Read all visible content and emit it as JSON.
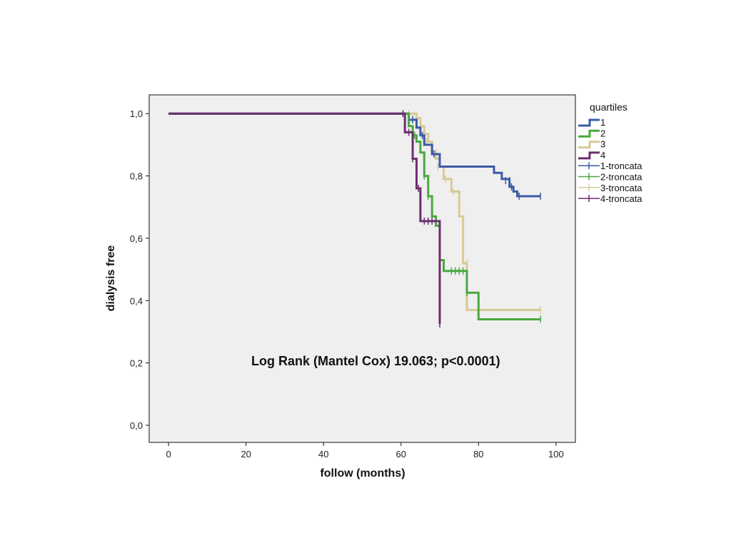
{
  "chart_data": {
    "type": "line",
    "subtype": "kaplan-meier step",
    "xlabel": "follow (months)",
    "ylabel": "dialysis free",
    "xlim": [
      -5,
      105
    ],
    "ylim": [
      -0.055,
      1.06
    ],
    "x_ticks": [
      0,
      20,
      40,
      60,
      80,
      100
    ],
    "y_ticks": [
      0,
      0.2,
      0.4,
      0.6,
      0.8,
      1.0
    ],
    "x_tick_labels": [
      "0",
      "20",
      "40",
      "60",
      "80",
      "100"
    ],
    "y_tick_labels": [
      "0,0",
      "0,2",
      "0,4",
      "0,6",
      "0,8",
      "1,0"
    ],
    "annotation": "Log Rank (Mantel Cox) 19.063; p<0.0001)",
    "legend": {
      "title": "quartiles",
      "position": "right",
      "entries": [
        "1",
        "2",
        "3",
        "4",
        "1-troncata",
        "2-troncata",
        "3-troncata",
        "4-troncata"
      ]
    },
    "series": [
      {
        "name": "1",
        "color": "#3a5ba8",
        "steps": [
          [
            0,
            1.0
          ],
          [
            62,
            0.98
          ],
          [
            64,
            0.955
          ],
          [
            65,
            0.93
          ],
          [
            66,
            0.9
          ],
          [
            68,
            0.87
          ],
          [
            70,
            0.83
          ],
          [
            84,
            0.81
          ],
          [
            86,
            0.79
          ],
          [
            88,
            0.765
          ],
          [
            89,
            0.75
          ],
          [
            90,
            0.735
          ],
          [
            96,
            0.735
          ]
        ],
        "censored": [
          [
            61,
            0.98
          ],
          [
            63,
            0.98
          ],
          [
            65.5,
            0.93
          ],
          [
            68.5,
            0.87
          ],
          [
            87,
            0.785
          ],
          [
            88,
            0.785
          ],
          [
            88.5,
            0.765
          ],
          [
            90.5,
            0.735
          ],
          [
            96,
            0.735
          ]
        ]
      },
      {
        "name": "2",
        "color": "#4aa83f",
        "steps": [
          [
            0,
            1.0
          ],
          [
            62,
            0.96
          ],
          [
            63,
            0.93
          ],
          [
            64,
            0.91
          ],
          [
            65,
            0.875
          ],
          [
            66,
            0.8
          ],
          [
            67,
            0.735
          ],
          [
            68,
            0.67
          ],
          [
            69,
            0.64
          ],
          [
            70,
            0.53
          ],
          [
            71,
            0.495
          ],
          [
            77,
            0.425
          ],
          [
            80,
            0.34
          ],
          [
            96,
            0.34
          ]
        ],
        "censored": [
          [
            63.5,
            0.93
          ],
          [
            66,
            0.8
          ],
          [
            67,
            0.735
          ],
          [
            68,
            0.67
          ],
          [
            73,
            0.495
          ],
          [
            74,
            0.495
          ],
          [
            75,
            0.495
          ],
          [
            76,
            0.495
          ],
          [
            77,
            0.425
          ],
          [
            96,
            0.34
          ]
        ]
      },
      {
        "name": "3",
        "color": "#d6cb95",
        "steps": [
          [
            0,
            1.0
          ],
          [
            64,
            0.985
          ],
          [
            65,
            0.96
          ],
          [
            66,
            0.935
          ],
          [
            67,
            0.91
          ],
          [
            68,
            0.88
          ],
          [
            69,
            0.855
          ],
          [
            70,
            0.83
          ],
          [
            71,
            0.79
          ],
          [
            73,
            0.75
          ],
          [
            75,
            0.67
          ],
          [
            76,
            0.52
          ],
          [
            77,
            0.37
          ],
          [
            96,
            0.37
          ]
        ],
        "censored": [
          [
            62,
            1.0
          ],
          [
            63,
            0.985
          ],
          [
            66.5,
            0.91
          ],
          [
            69.5,
            0.83
          ],
          [
            71.5,
            0.79
          ],
          [
            73.5,
            0.75
          ],
          [
            77,
            0.52
          ],
          [
            96,
            0.37
          ]
        ]
      },
      {
        "name": "4",
        "color": "#6d2e6f",
        "steps": [
          [
            0,
            1.0
          ],
          [
            61,
            0.94
          ],
          [
            63,
            0.855
          ],
          [
            64,
            0.76
          ],
          [
            65,
            0.655
          ],
          [
            70,
            0.325
          ]
        ],
        "censored": [
          [
            60.5,
            1.0
          ],
          [
            62,
            0.94
          ],
          [
            63,
            0.855
          ],
          [
            64.5,
            0.76
          ],
          [
            66,
            0.655
          ],
          [
            67,
            0.655
          ],
          [
            68,
            0.655
          ],
          [
            70,
            0.325
          ]
        ]
      }
    ]
  }
}
